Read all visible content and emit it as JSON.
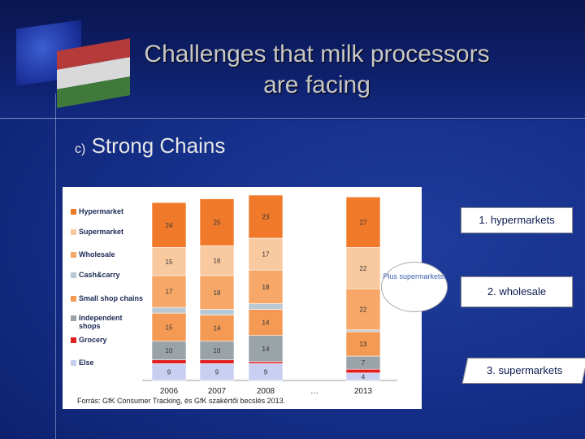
{
  "title_line1": "Challenges that milk processors",
  "title_line2": "are  facing",
  "subtitle_letter": "c)",
  "subtitle_text": "Strong Chains",
  "source": "Forrás: GfK Consumer Tracking, és GfK szakértői becslés 2013.",
  "callouts": {
    "hyper": "1. hypermarkets",
    "wholesale": "2. wholesale",
    "super": "3. supermarkets",
    "bubble": "Plus supermarkets!"
  },
  "colors": {
    "Hypermarket": "#f07a2a",
    "Supermarket": "#f9c9a0",
    "Wholesale": "#f7a868",
    "Cash&carry": "#b9c9d6",
    "Small shop chains": "#f49a55",
    "Independent shops": "#9aa3a8",
    "Grocery": "#e01f1f",
    "Else": "#c8cff0"
  },
  "chart_data": {
    "type": "bar",
    "stacked": true,
    "categories": [
      "2006",
      "2007",
      "2008",
      "…",
      "2013"
    ],
    "legend": [
      "Hypermarket",
      "Supermarket",
      "Wholesale",
      "Cash&carry",
      "Small shop chains",
      "Independent shops",
      "Grocery",
      "Else"
    ],
    "series": [
      {
        "name": "Else",
        "values": [
          9,
          9,
          9,
          null,
          4
        ],
        "labels": [
          "9",
          "9",
          "9",
          "",
          "4"
        ]
      },
      {
        "name": "Grocery",
        "values": [
          2,
          2,
          1,
          null,
          2
        ],
        "labels": [
          "2",
          "2",
          "1",
          "",
          ""
        ]
      },
      {
        "name": "Independent shops",
        "values": [
          10,
          10,
          14,
          null,
          7
        ],
        "labels": [
          "10",
          "10",
          "14",
          "",
          "7"
        ]
      },
      {
        "name": "Small shop chains",
        "values": [
          15,
          14,
          14,
          null,
          13
        ],
        "labels": [
          "15",
          "14",
          "14",
          "",
          "13"
        ]
      },
      {
        "name": "Cash&carry",
        "values": [
          3,
          3,
          3,
          null,
          1
        ],
        "labels": [
          "3",
          "3",
          "3",
          "",
          "1"
        ]
      },
      {
        "name": "Wholesale",
        "values": [
          17,
          18,
          18,
          null,
          22
        ],
        "labels": [
          "17",
          "18",
          "18",
          "",
          "22"
        ]
      },
      {
        "name": "Supermarket",
        "values": [
          15,
          16,
          17,
          null,
          22
        ],
        "labels": [
          "15",
          "16",
          "17",
          "",
          "22"
        ]
      },
      {
        "name": "Hypermarket",
        "values": [
          24,
          25,
          23,
          null,
          27
        ],
        "labels": [
          "24",
          "25",
          "23",
          "",
          "27"
        ]
      }
    ]
  }
}
